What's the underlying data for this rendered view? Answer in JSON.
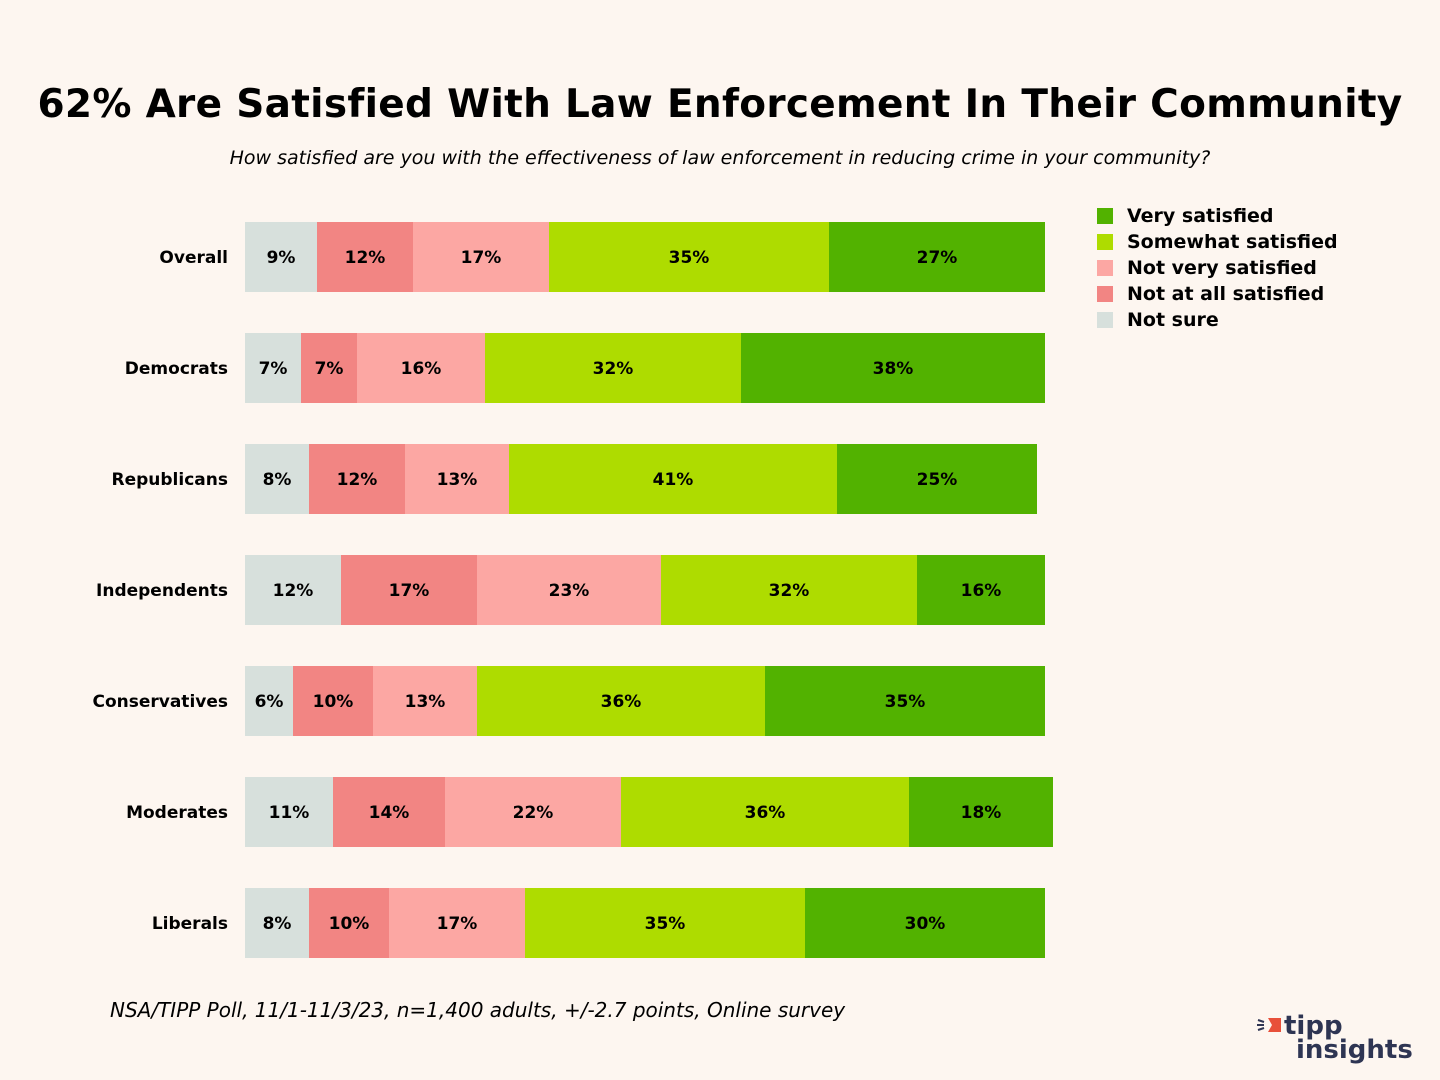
{
  "chart_data": {
    "type": "bar",
    "orientation": "horizontal",
    "stacked": true,
    "title": "62% Are Satisfied With Law Enforcement In Their Community",
    "subtitle": "How satisfied are you with the effectiveness of law enforcement in reducing crime in your community?",
    "categories": [
      "Overall",
      "Democrats",
      "Republicans",
      "Independents",
      "Conservatives",
      "Moderates",
      "Liberals"
    ],
    "series": [
      {
        "name": "Not sure",
        "color": "#d7e0dc",
        "values": [
          9,
          7,
          8,
          12,
          6,
          11,
          8
        ]
      },
      {
        "name": "Not at all satisfied",
        "color": "#f28583",
        "values": [
          12,
          7,
          12,
          17,
          10,
          14,
          10
        ]
      },
      {
        "name": "Not very satisfied",
        "color": "#fca7a3",
        "values": [
          17,
          16,
          13,
          23,
          13,
          22,
          17
        ]
      },
      {
        "name": "Somewhat satisfied",
        "color": "#aedc00",
        "values": [
          35,
          32,
          41,
          32,
          36,
          36,
          35
        ]
      },
      {
        "name": "Very satisfied",
        "color": "#52b200",
        "values": [
          27,
          38,
          25,
          16,
          35,
          18,
          30
        ]
      }
    ],
    "legend_order": [
      "Very satisfied",
      "Somewhat satisfied",
      "Not very satisfied",
      "Not at all satisfied",
      "Not sure"
    ],
    "value_suffix": "%",
    "xlim": [
      0,
      100
    ],
    "grid": false,
    "legend_position": "right"
  },
  "footer": {
    "source": "NSA/TIPP Poll, 11/1-11/3/23, n=1,400 adults, +/-2.7 points, Online survey"
  },
  "logo": {
    "line1": "tipp",
    "line2": "insights",
    "accent": "#e8503a"
  },
  "background": "#fdf6f0"
}
